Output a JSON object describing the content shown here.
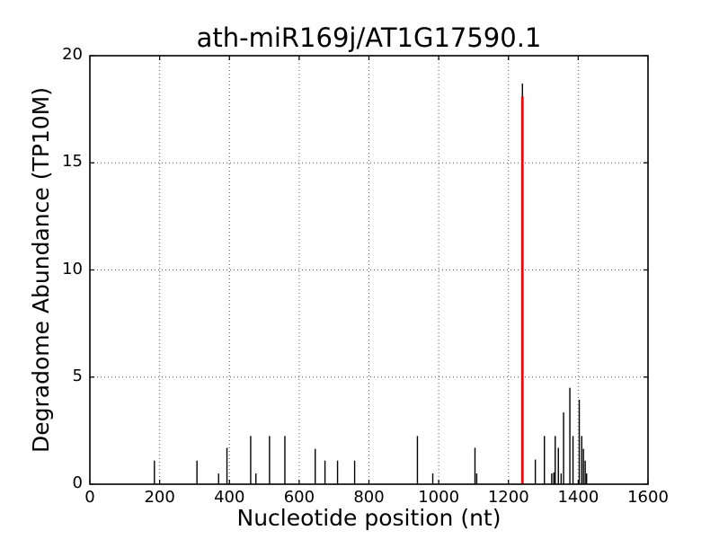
{
  "chart_data": {
    "type": "bar",
    "subtype": "degradome-t-plot-vlines",
    "title": "ath-miR169j/AT1G17590.1",
    "xlabel": "Nucleotide position (nt)",
    "ylabel": "Degradome Abundance (TP10M)",
    "xlim": [
      0,
      1600
    ],
    "ylim": [
      0,
      20
    ],
    "xticks": [
      0,
      200,
      400,
      600,
      800,
      1000,
      1200,
      1400,
      1600
    ],
    "yticks": [
      0,
      5,
      10,
      15,
      20
    ],
    "grid": {
      "style": "dotted",
      "color": "#555555",
      "on": true
    },
    "legend": {
      "shown": false
    },
    "series": [
      {
        "name": "degradome-abundance",
        "color": "#000000",
        "points": [
          [
            185,
            1.1
          ],
          [
            307,
            1.1
          ],
          [
            369,
            0.5
          ],
          [
            393,
            1.7
          ],
          [
            461,
            2.25
          ],
          [
            476,
            0.5
          ],
          [
            515,
            2.25
          ],
          [
            559,
            2.25
          ],
          [
            646,
            1.65
          ],
          [
            674,
            1.1
          ],
          [
            710,
            1.1
          ],
          [
            759,
            1.1
          ],
          [
            939,
            2.25
          ],
          [
            983,
            0.5
          ],
          [
            1104,
            1.7
          ],
          [
            1109,
            0.5
          ],
          [
            1240,
            18.7
          ],
          [
            1277,
            1.15
          ],
          [
            1303,
            2.25
          ],
          [
            1324,
            0.5
          ],
          [
            1330,
            0.55
          ],
          [
            1334,
            2.25
          ],
          [
            1343,
            1.7
          ],
          [
            1351,
            0.5
          ],
          [
            1358,
            3.35
          ],
          [
            1376,
            4.5
          ],
          [
            1385,
            2.25
          ],
          [
            1403,
            3.95
          ],
          [
            1410,
            2.25
          ],
          [
            1415,
            1.65
          ],
          [
            1420,
            1.1
          ],
          [
            1424,
            0.5
          ]
        ]
      },
      {
        "name": "mirna-cleavage-site",
        "color": "#ff0000",
        "points": [
          [
            1240,
            18.1
          ]
        ]
      }
    ],
    "peak": {
      "position": 1240,
      "value": 18.7,
      "marker_color": "#ff0000"
    }
  },
  "colors": {
    "background": "#ffffff",
    "axes": "#000000",
    "text": "#000000",
    "spike": "#000000",
    "cleavage_marker": "#ff0000",
    "grid": "#555555"
  }
}
